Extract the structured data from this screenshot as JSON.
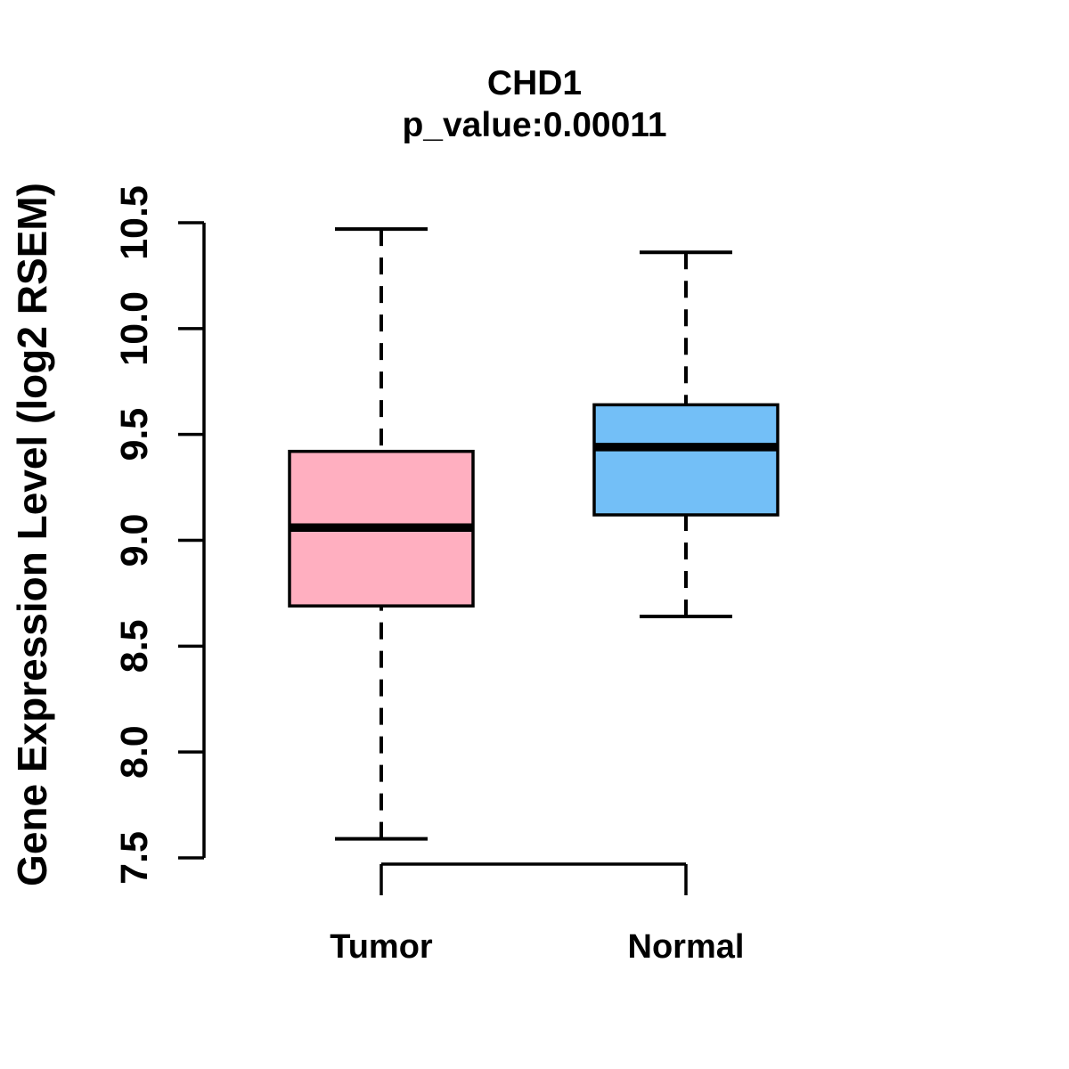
{
  "chart_data": {
    "type": "boxplot",
    "title": "CHD1",
    "subtitle": "p_value:0.00011",
    "p_value": "0.00011",
    "ylabel": "Gene Expression Level (log2 RSEM)",
    "xlabel": "",
    "categories": [
      "Tumor",
      "Normal"
    ],
    "series": [
      {
        "name": "Tumor",
        "fill_color": "#FFAFC0",
        "whisker_low": 7.59,
        "q1": 8.69,
        "median": 9.06,
        "q3": 9.42,
        "whisker_high": 10.47
      },
      {
        "name": "Normal",
        "fill_color": "#73BFF7",
        "whisker_low": 8.64,
        "q1": 9.12,
        "median": 9.44,
        "q3": 9.64,
        "whisker_high": 10.36
      }
    ],
    "ylim": [
      7.5,
      10.5
    ],
    "yticks": [
      "7.5",
      "8.0",
      "8.5",
      "9.0",
      "9.5",
      "10.0",
      "10.5"
    ],
    "grid": false,
    "legend": "none",
    "whisker_style": "dashed",
    "box_border_color": "#000000",
    "median_color": "#000000",
    "background_color": "#FFFFFF"
  }
}
